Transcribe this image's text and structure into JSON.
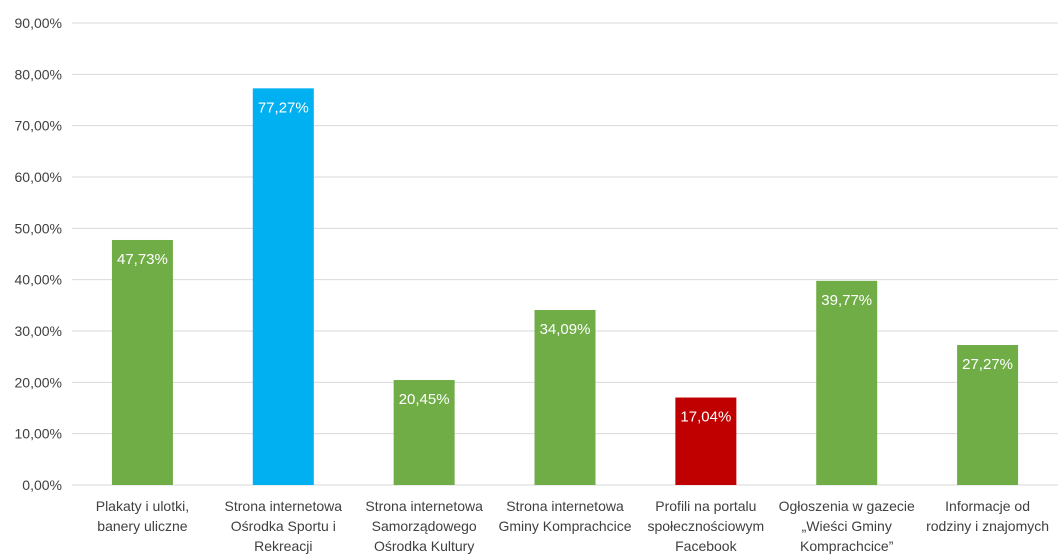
{
  "chart_data": {
    "type": "bar",
    "title": "",
    "xlabel": "",
    "ylabel": "",
    "ylim": [
      0,
      90
    ],
    "y_ticks": [
      "0,00%",
      "10,00%",
      "20,00%",
      "30,00%",
      "40,00%",
      "50,00%",
      "60,00%",
      "70,00%",
      "80,00%",
      "90,00%"
    ],
    "grid": true,
    "legend": "none",
    "categories": [
      [
        "Plakaty i ulotki,",
        "banery uliczne"
      ],
      [
        "Strona internetowa",
        "Ośrodka Sportu i",
        "Rekreacji"
      ],
      [
        "Strona internetowa",
        "Samorządowego",
        "Ośrodka Kultury"
      ],
      [
        "Strona internetowa",
        "Gminy Komprachcice"
      ],
      [
        "Profili na portalu",
        "społecznościowym",
        "Facebook"
      ],
      [
        "Ogłoszenia w gazecie",
        "„Wieści Gminy",
        "Komprachcice”"
      ],
      [
        "Informacje od",
        "rodziny i znajomych"
      ]
    ],
    "values": [
      47.73,
      77.27,
      20.45,
      34.09,
      17.04,
      39.77,
      27.27
    ],
    "value_labels": [
      "47,73%",
      "77,27%",
      "20,45%",
      "34,09%",
      "17,04%",
      "39,77%",
      "27,27%"
    ],
    "bar_colors": [
      "#70ad47",
      "#00b0f0",
      "#70ad47",
      "#70ad47",
      "#c00000",
      "#70ad47",
      "#70ad47"
    ],
    "gridline_color": "#d9d9d9",
    "label_color": "#ffffff",
    "text_color": "#404040"
  }
}
